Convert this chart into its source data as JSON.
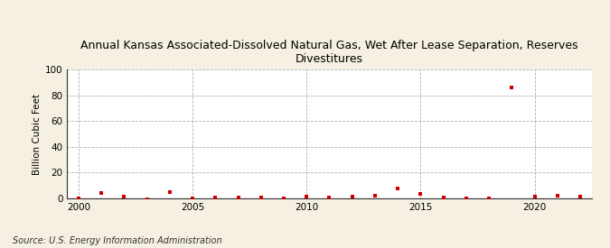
{
  "title": "Annual Kansas Associated-Dissolved Natural Gas, Wet After Lease Separation, Reserves\nDivestitures",
  "ylabel": "Billion Cubic Feet",
  "source": "Source: U.S. Energy Information Administration",
  "background_color": "#f5f0e1",
  "plot_background_color": "#ffffff",
  "marker_color": "#cc0000",
  "marker": "s",
  "marker_size": 3,
  "xlim": [
    1999.5,
    2022.5
  ],
  "ylim": [
    0,
    100
  ],
  "yticks": [
    0,
    20,
    40,
    60,
    80,
    100
  ],
  "xticks": [
    2000,
    2005,
    2010,
    2015,
    2020
  ],
  "years": [
    2000,
    2001,
    2002,
    2003,
    2004,
    2005,
    2006,
    2007,
    2008,
    2009,
    2010,
    2011,
    2012,
    2013,
    2014,
    2015,
    2016,
    2017,
    2018,
    2019,
    2020,
    2021,
    2022
  ],
  "values": [
    0.0,
    4.0,
    1.5,
    -0.5,
    5.0,
    -0.3,
    0.5,
    0.5,
    1.0,
    0.0,
    1.5,
    0.5,
    1.5,
    2.0,
    8.0,
    3.5,
    1.0,
    -0.3,
    -0.3,
    86.0,
    1.5,
    2.0,
    1.5
  ]
}
